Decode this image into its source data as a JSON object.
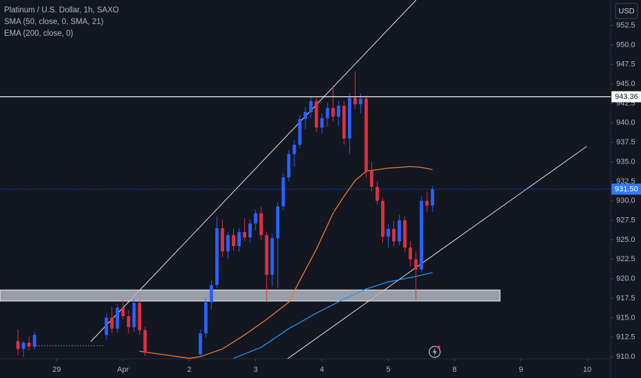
{
  "chart_data": {
    "type": "candlestick",
    "title": "Platinum / U.S. Dollar, 1h, SAXO",
    "currency": "USD",
    "up_color": "#2962ff",
    "down_color": "#e0303f",
    "grid": false,
    "xlim": [
      -0.5,
      220.5
    ],
    "xticks": [
      {
        "value": 20,
        "label": "29"
      },
      {
        "value": 44,
        "label": "Apr"
      },
      {
        "value": 68,
        "label": "2"
      },
      {
        "value": 92,
        "label": "3"
      },
      {
        "value": 116,
        "label": "4"
      },
      {
        "value": 140,
        "label": "5"
      },
      {
        "value": 164,
        "label": "8"
      },
      {
        "value": 188,
        "label": "9"
      },
      {
        "value": 212,
        "label": "10"
      }
    ],
    "ylim": [
      909.74,
      955.77
    ],
    "yticks": [
      {
        "value": 910,
        "label": "910.0"
      },
      {
        "value": 912.5,
        "label": "912.5"
      },
      {
        "value": 915,
        "label": "915.0"
      },
      {
        "value": 917.5,
        "label": "917.5"
      },
      {
        "value": 920,
        "label": "920.0"
      },
      {
        "value": 922.5,
        "label": "922.5"
      },
      {
        "value": 925,
        "label": "925.0"
      },
      {
        "value": 927.5,
        "label": "927.5"
      },
      {
        "value": 930,
        "label": "930.0"
      },
      {
        "value": 932.5,
        "label": "932.5"
      },
      {
        "value": 935,
        "label": "935.0"
      },
      {
        "value": 937.5,
        "label": "937.5"
      },
      {
        "value": 940,
        "label": "940.0"
      },
      {
        "value": 942.5,
        "label": "942.5"
      },
      {
        "value": 945,
        "label": "945.0"
      },
      {
        "value": 947.5,
        "label": "947.5"
      },
      {
        "value": 950,
        "label": "950.0"
      },
      {
        "value": 952.5,
        "label": "952.5"
      }
    ],
    "x": [
      6,
      8,
      10,
      12,
      38,
      40,
      42,
      44,
      46,
      48,
      50,
      52,
      72,
      74,
      76,
      78,
      80,
      82,
      84,
      86,
      88,
      90,
      92,
      94,
      96,
      98,
      100,
      102,
      104,
      106,
      108,
      110,
      112,
      114,
      116,
      118,
      120,
      122,
      124,
      126,
      128,
      130,
      132,
      134,
      136,
      138,
      140,
      142,
      144,
      146,
      148,
      150,
      152,
      154,
      156
    ],
    "open": [
      912.0,
      911.0,
      911.8,
      911.3,
      912.8,
      915.0,
      913.6,
      916.3,
      915.2,
      913.8,
      916.9,
      913.4,
      910.3,
      913.0,
      917.0,
      919.2,
      926.5,
      923.5,
      925.6,
      924.2,
      926.0,
      925.3,
      927.1,
      928.4,
      925.6,
      920.5,
      925.2,
      929.3,
      933.0,
      936.0,
      937.2,
      940.5,
      941.4,
      942.8,
      939.4,
      940.6,
      941.9,
      940.8,
      942.2,
      938.0,
      943.2,
      942.4,
      943.1,
      933.8,
      931.8,
      930.0,
      925.4,
      926.4,
      924.8,
      927.5,
      924.0,
      922.5,
      921.2,
      930.0,
      929.4
    ],
    "high": [
      913.5,
      912.0,
      912.6,
      913.2,
      915.5,
      916.4,
      916.8,
      917.3,
      916.0,
      917.4,
      917.2,
      913.8,
      913.5,
      917.5,
      919.8,
      928.0,
      927.6,
      926.0,
      926.4,
      926.5,
      927.8,
      927.6,
      928.9,
      929.2,
      926.0,
      925.8,
      929.8,
      933.6,
      936.5,
      937.8,
      941.0,
      942.0,
      943.4,
      943.2,
      941.2,
      942.6,
      944.8,
      942.8,
      942.8,
      943.8,
      946.6,
      943.8,
      943.5,
      935.0,
      932.5,
      930.4,
      927.0,
      927.4,
      928.2,
      928.0,
      924.8,
      923.5,
      930.6,
      931.2,
      931.9
    ],
    "low": [
      910.2,
      910.0,
      910.8,
      910.9,
      912.2,
      913.0,
      913.1,
      914.8,
      913.0,
      913.2,
      912.8,
      910.1,
      910.0,
      912.5,
      916.0,
      918.8,
      922.8,
      922.5,
      923.6,
      923.5,
      924.8,
      924.6,
      926.2,
      925.0,
      917.0,
      919.0,
      918.8,
      928.8,
      932.5,
      934.4,
      936.8,
      939.2,
      940.6,
      938.8,
      938.6,
      939.5,
      940.2,
      939.6,
      937.2,
      936.0,
      941.8,
      941.2,
      933.0,
      931.2,
      929.5,
      924.6,
      924.0,
      924.2,
      924.3,
      923.4,
      921.6,
      917.2,
      920.8,
      928.6,
      928.6
    ],
    "close": [
      911.0,
      911.8,
      911.3,
      912.8,
      915.0,
      913.6,
      916.3,
      915.2,
      913.8,
      916.9,
      913.4,
      910.5,
      913.0,
      917.0,
      919.2,
      926.5,
      923.5,
      925.6,
      924.2,
      926.0,
      925.3,
      927.1,
      928.4,
      925.6,
      920.5,
      925.2,
      929.3,
      933.0,
      936.0,
      937.2,
      940.5,
      941.4,
      942.8,
      939.4,
      940.6,
      941.9,
      940.8,
      942.2,
      938.0,
      943.2,
      942.4,
      943.1,
      933.8,
      931.8,
      930.0,
      925.4,
      926.4,
      924.8,
      927.5,
      924.0,
      922.5,
      921.2,
      930.0,
      929.4,
      931.5
    ],
    "series": [
      {
        "name": "SMA (50, close, 0, SMA, 21)",
        "color": "#f57c2c",
        "x": [
          50,
          56,
          62,
          68,
          72,
          80,
          88,
          96,
          104,
          108,
          114,
          120,
          124,
          128,
          132,
          140,
          148,
          152,
          156
        ],
        "values": [
          910.7,
          910.4,
          910.1,
          909.8,
          910.0,
          911.0,
          912.8,
          914.8,
          917.0,
          919.8,
          923.8,
          928.4,
          930.6,
          932.6,
          933.8,
          934.2,
          934.4,
          934.3,
          934.0
        ]
      },
      {
        "name": "EMA (200, close, 0)",
        "color": "#2196f3",
        "x": [
          84,
          94,
          104,
          114,
          124,
          132,
          140,
          150,
          156
        ],
        "values": [
          909.8,
          911.2,
          913.6,
          915.6,
          917.4,
          918.7,
          919.6,
          920.3,
          920.8
        ]
      }
    ],
    "hline": {
      "value": 943.36,
      "label": "943.36"
    },
    "last_price": {
      "value": 931.5,
      "label": "931.50"
    }
  }
}
